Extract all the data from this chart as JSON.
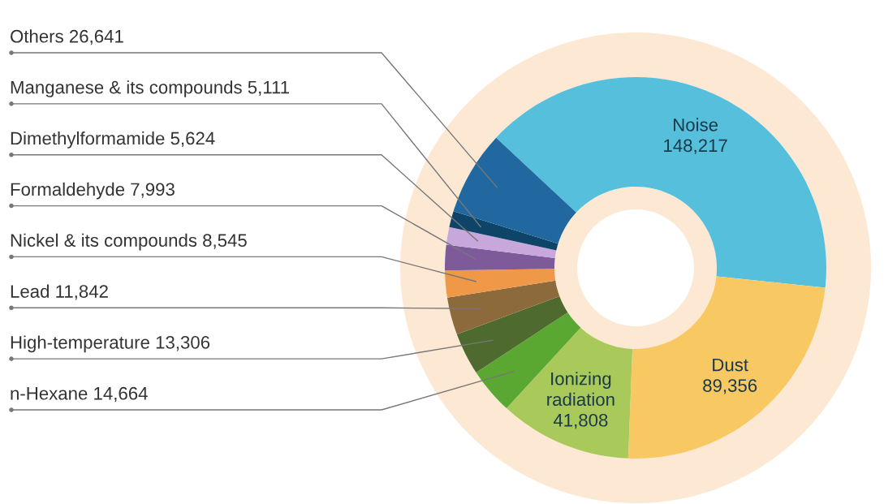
{
  "chart_data": {
    "type": "donut",
    "categories": [
      "Noise",
      "Dust",
      "Ionizing\nradiation",
      "n-Hexane",
      "High-temperature",
      "Lead",
      "Nickel & its compounds",
      "Formaldehyde",
      "Dimethylformamide",
      "Manganese & its compounds",
      "Others"
    ],
    "values": [
      148217,
      89356,
      41808,
      14664,
      13306,
      11842,
      8545,
      7993,
      5624,
      5111,
      26641
    ],
    "value_labels": [
      "148,217",
      "89,356",
      "41,808",
      "14,664",
      "13,306",
      "11,842",
      "8,545",
      "7,993",
      "5,624",
      "5,111",
      "26,641"
    ],
    "colors": [
      "#56c0dc",
      "#f8c862",
      "#a9c95a",
      "#5aa832",
      "#4f6a2e",
      "#8c6a3c",
      "#ee9848",
      "#7e5a9a",
      "#c8a8dc",
      "#0e4468",
      "#2268a0"
    ],
    "legend": false
  }
}
